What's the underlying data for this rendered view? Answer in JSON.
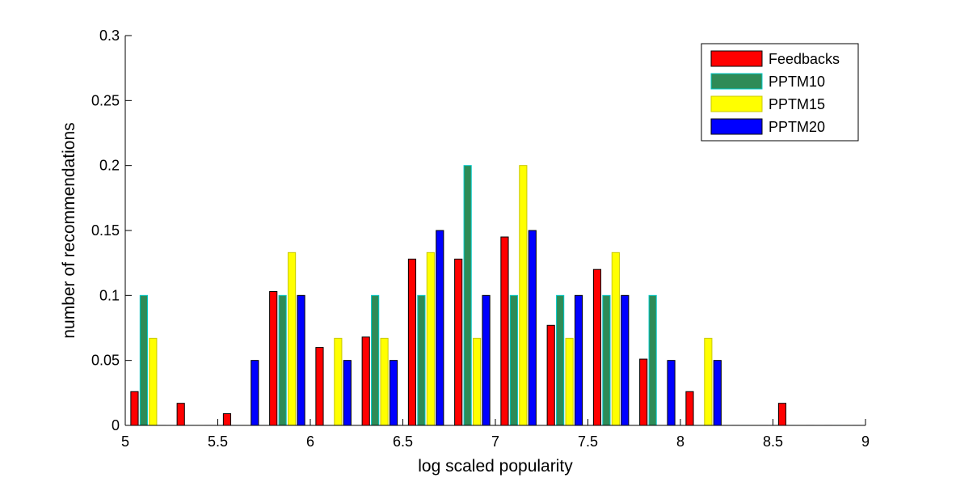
{
  "chart_data": {
    "type": "bar",
    "xlabel": "log scaled popularity",
    "ylabel": "number of recommendations",
    "xlim": [
      5,
      9
    ],
    "ylim": [
      0,
      0.3
    ],
    "x_ticks": [
      "5",
      "5.5",
      "6",
      "6.5",
      "7",
      "7.5",
      "8",
      "8.5",
      "9"
    ],
    "y_ticks": [
      "0",
      "0.05",
      "0.1",
      "0.15",
      "0.2",
      "0.25",
      "0.3"
    ],
    "legend_position": "top-right",
    "bin_centers": [
      5.125,
      5.375,
      5.625,
      5.875,
      6.125,
      6.375,
      6.625,
      6.875,
      7.125,
      7.375,
      7.625,
      7.875,
      8.125,
      8.375,
      8.625,
      8.875
    ],
    "series": [
      {
        "name": "Feedbacks",
        "color": "#ff0000",
        "edge": "#000000",
        "values": [
          0.026,
          0.017,
          0.009,
          0.103,
          0.06,
          0.068,
          0.128,
          0.128,
          0.145,
          0.077,
          0.12,
          0.051,
          0.026,
          0,
          0.017,
          0
        ]
      },
      {
        "name": "PPTM10",
        "color": "#2e8b57",
        "edge": "#00c8c8",
        "values": [
          0.1,
          0,
          0,
          0.1,
          0,
          0.1,
          0.1,
          0.2,
          0.1,
          0.1,
          0.1,
          0.1,
          0,
          0,
          0,
          0
        ]
      },
      {
        "name": "PPTM15",
        "color": "#ffff00",
        "edge": "#c8c800",
        "values": [
          0.067,
          0,
          0,
          0.133,
          0.067,
          0.067,
          0.133,
          0.067,
          0.2,
          0.067,
          0.133,
          0,
          0.067,
          0,
          0,
          0
        ]
      },
      {
        "name": "PPTM20",
        "color": "#0000ff",
        "edge": "#000000",
        "values": [
          0,
          0,
          0.05,
          0.1,
          0.05,
          0.05,
          0.15,
          0.1,
          0.15,
          0.1,
          0.1,
          0.05,
          0.05,
          0,
          0,
          0
        ]
      }
    ]
  }
}
